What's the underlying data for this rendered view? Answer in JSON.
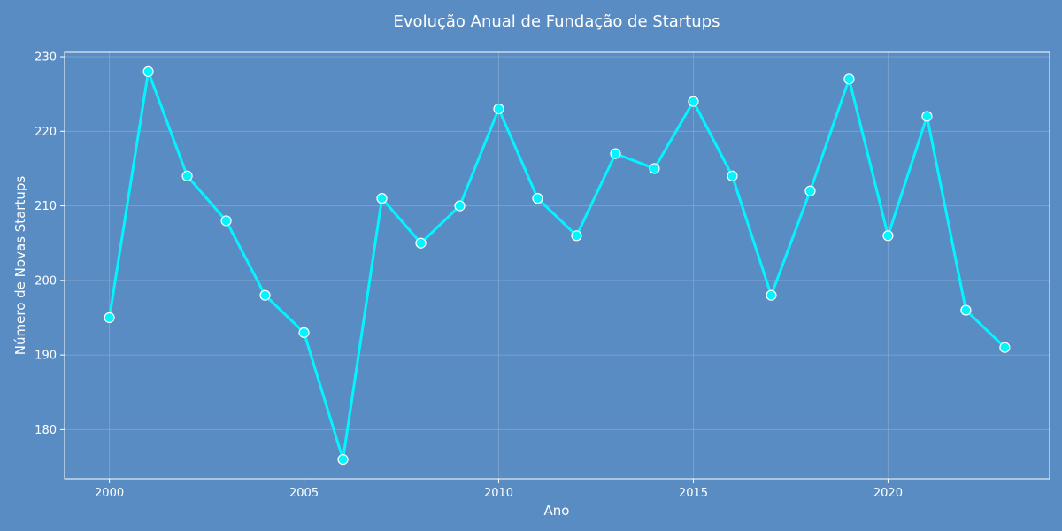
{
  "chart_data": {
    "type": "line",
    "title": "Evolução Anual de Fundação de Startups",
    "xlabel": "Ano",
    "ylabel": "Número de Novas Startups",
    "xlim": [
      1998.85,
      2024.15
    ],
    "ylim": [
      173.4,
      230.6
    ],
    "xticks": [
      2000,
      2005,
      2010,
      2015,
      2020
    ],
    "yticks": [
      180,
      190,
      200,
      210,
      220,
      230
    ],
    "grid": true,
    "series": [
      {
        "x": [
          2000,
          2001,
          2002,
          2003,
          2004,
          2005,
          2006,
          2007,
          2008,
          2009,
          2010,
          2011,
          2012,
          2013,
          2014,
          2015,
          2016,
          2017,
          2018,
          2019,
          2020,
          2021,
          2022,
          2023
        ],
        "values": [
          195,
          228,
          214,
          208,
          198,
          193,
          176,
          211,
          205,
          210,
          223,
          211,
          206,
          217,
          215,
          224,
          214,
          198,
          212,
          227,
          206,
          222,
          196,
          191
        ]
      }
    ],
    "colors": {
      "background": "#5a8cc4",
      "line": "#00f5ff",
      "marker_fill": "#00f5ff",
      "marker_edge": "#ffffff",
      "axis": "#ffffff",
      "grid": "#8aaed6"
    }
  }
}
